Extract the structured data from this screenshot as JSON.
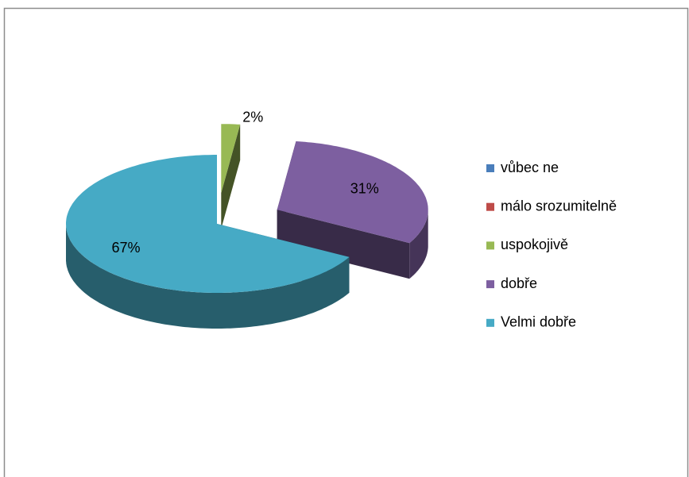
{
  "chart_data": {
    "type": "pie",
    "categories": [
      "vůbec ne",
      "málo srozumitelně",
      "uspokojivě",
      "dobře",
      "Velmi dobře"
    ],
    "values": [
      0,
      0,
      2,
      31,
      67
    ],
    "value_labels": [
      null,
      null,
      "2%",
      "31%",
      "67%"
    ],
    "colors": [
      "#4a7ebb",
      "#be4b48",
      "#98b954",
      "#7d5fa0",
      "#46aac5"
    ],
    "legend": "right"
  }
}
